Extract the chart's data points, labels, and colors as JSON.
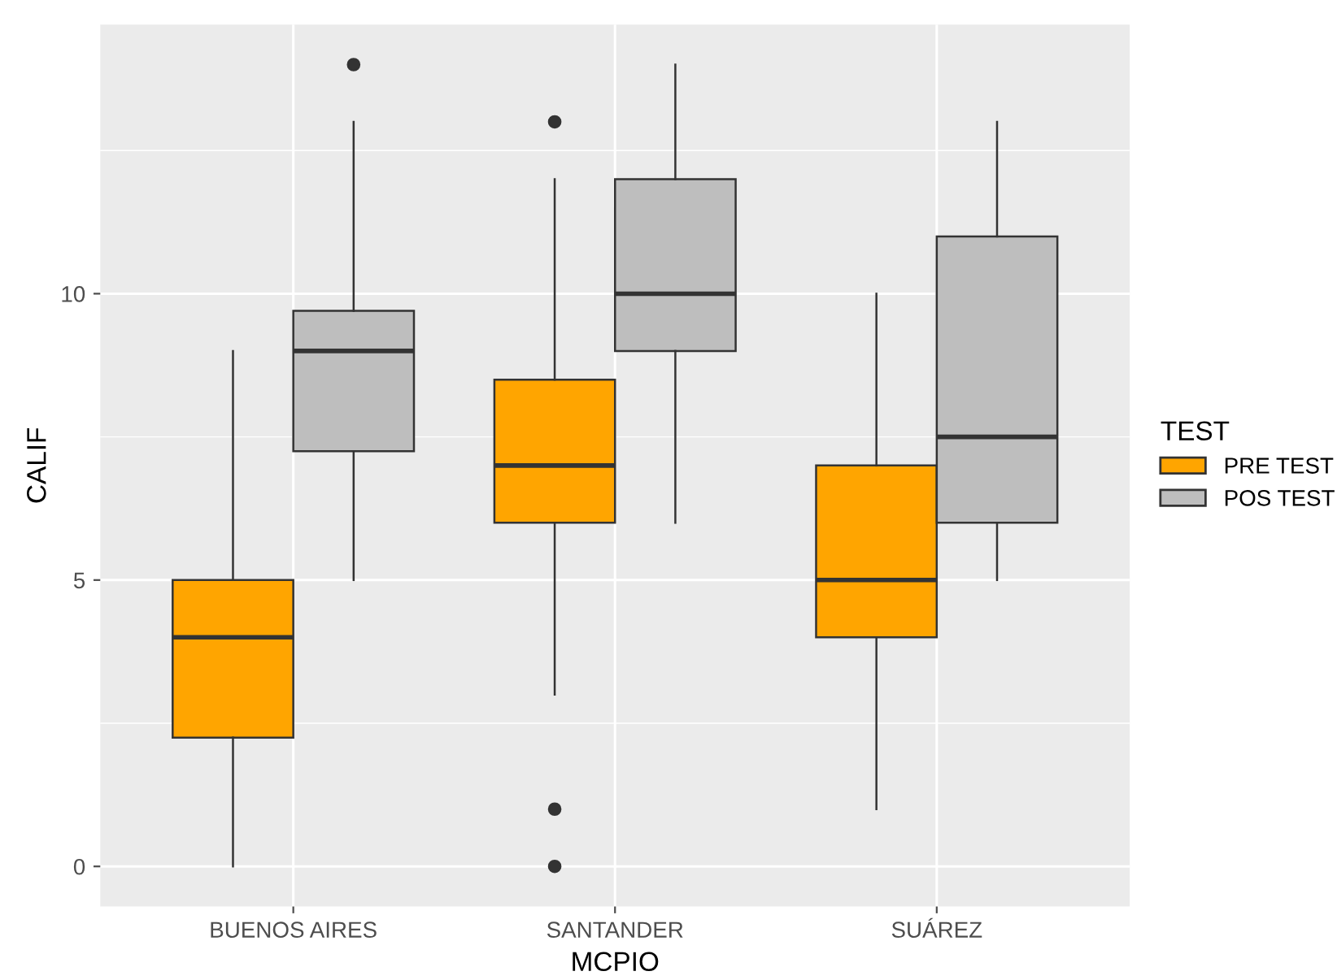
{
  "chart_data": {
    "type": "box",
    "xlabel": "MCPIO",
    "ylabel": "CALIF",
    "legend_title": "TEST",
    "categories": [
      "BUENOS AIRES",
      "SANTANDER",
      "SUÁREZ"
    ],
    "series": [
      {
        "name": "PRE TEST",
        "color": "#ffa500",
        "boxes": [
          {
            "low": 0,
            "q1": 2.25,
            "median": 4,
            "q3": 5,
            "high": 9
          },
          {
            "low": 3,
            "q1": 6,
            "median": 7,
            "q3": 8.5,
            "high": 12,
            "outliers": [
              13,
              1,
              0
            ]
          },
          {
            "low": 1,
            "q1": 4,
            "median": 5,
            "q3": 7,
            "high": 10
          }
        ]
      },
      {
        "name": "POS TEST",
        "color": "#bebebe",
        "boxes": [
          {
            "low": 5,
            "q1": 7.25,
            "median": 9,
            "q3": 9.7,
            "high": 13,
            "outliers": [
              14
            ]
          },
          {
            "low": 6,
            "q1": 9,
            "median": 10,
            "q3": 12,
            "high": 14
          },
          {
            "low": 5,
            "q1": 6,
            "median": 7.5,
            "q3": 11,
            "high": 13
          }
        ]
      }
    ],
    "ylim": [
      -0.7,
      14.7
    ],
    "yticks": [
      0,
      5,
      10
    ],
    "grid": true,
    "legend": "right"
  }
}
